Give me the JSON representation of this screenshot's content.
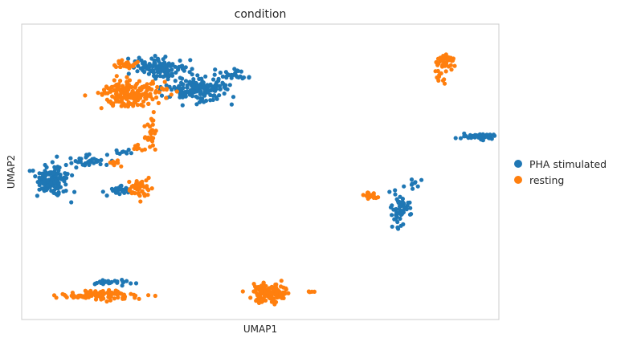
{
  "chart_data": {
    "type": "scatter",
    "title": "condition",
    "xlabel": "UMAP1",
    "ylabel": "UMAP2",
    "grid": false,
    "ticks": false,
    "legend_position": "right",
    "series": [
      {
        "name": "PHA stimulated",
        "color": "#1f77b4",
        "clusters": [
          {
            "cx": 6.2,
            "cy": 9.4,
            "sx": 0.9,
            "sy": 0.25,
            "n": 120
          },
          {
            "cx": 8.0,
            "cy": 8.6,
            "sx": 1.1,
            "sy": 0.35,
            "n": 170
          },
          {
            "cx": 9.6,
            "cy": 9.1,
            "sx": 0.45,
            "sy": 0.15,
            "n": 25
          },
          {
            "cx": 1.3,
            "cy": 5.2,
            "sx": 0.55,
            "sy": 0.45,
            "n": 130
          },
          {
            "cx": 2.9,
            "cy": 5.9,
            "sx": 0.7,
            "sy": 0.15,
            "n": 35
          },
          {
            "cx": 4.4,
            "cy": 4.8,
            "sx": 0.4,
            "sy": 0.15,
            "n": 25
          },
          {
            "cx": 4.6,
            "cy": 6.2,
            "sx": 0.3,
            "sy": 0.08,
            "n": 10
          },
          {
            "cx": 17.0,
            "cy": 4.1,
            "sx": 0.35,
            "sy": 0.5,
            "n": 55
          },
          {
            "cx": 17.7,
            "cy": 5.0,
            "sx": 0.2,
            "sy": 0.15,
            "n": 8
          },
          {
            "cx": 20.6,
            "cy": 6.8,
            "sx": 0.6,
            "sy": 0.08,
            "n": 45
          },
          {
            "cx": 4.0,
            "cy": 1.4,
            "sx": 0.9,
            "sy": 0.08,
            "n": 25
          }
        ]
      },
      {
        "name": "resting",
        "color": "#ff7f0e",
        "clusters": [
          {
            "cx": 4.9,
            "cy": 8.4,
            "sx": 1.0,
            "sy": 0.35,
            "n": 190
          },
          {
            "cx": 4.7,
            "cy": 9.5,
            "sx": 0.4,
            "sy": 0.1,
            "n": 25
          },
          {
            "cx": 5.8,
            "cy": 7.0,
            "sx": 0.2,
            "sy": 0.35,
            "n": 25
          },
          {
            "cx": 5.4,
            "cy": 6.4,
            "sx": 0.3,
            "sy": 0.12,
            "n": 10
          },
          {
            "cx": 4.2,
            "cy": 5.8,
            "sx": 0.15,
            "sy": 0.1,
            "n": 8
          },
          {
            "cx": 5.3,
            "cy": 4.9,
            "sx": 0.4,
            "sy": 0.3,
            "n": 45
          },
          {
            "cx": 3.5,
            "cy": 0.9,
            "sx": 1.2,
            "sy": 0.12,
            "n": 110
          },
          {
            "cx": 11.2,
            "cy": 1.0,
            "sx": 0.7,
            "sy": 0.25,
            "n": 120
          },
          {
            "cx": 13.0,
            "cy": 1.0,
            "sx": 0.15,
            "sy": 0.05,
            "n": 5
          },
          {
            "cx": 15.7,
            "cy": 4.6,
            "sx": 0.25,
            "sy": 0.12,
            "n": 22
          },
          {
            "cx": 19.1,
            "cy": 9.6,
            "sx": 0.3,
            "sy": 0.22,
            "n": 45
          },
          {
            "cx": 18.8,
            "cy": 9.0,
            "sx": 0.15,
            "sy": 0.2,
            "n": 10
          }
        ]
      }
    ],
    "xlim": [
      0,
      21.5
    ],
    "ylim": [
      0,
      11
    ]
  }
}
